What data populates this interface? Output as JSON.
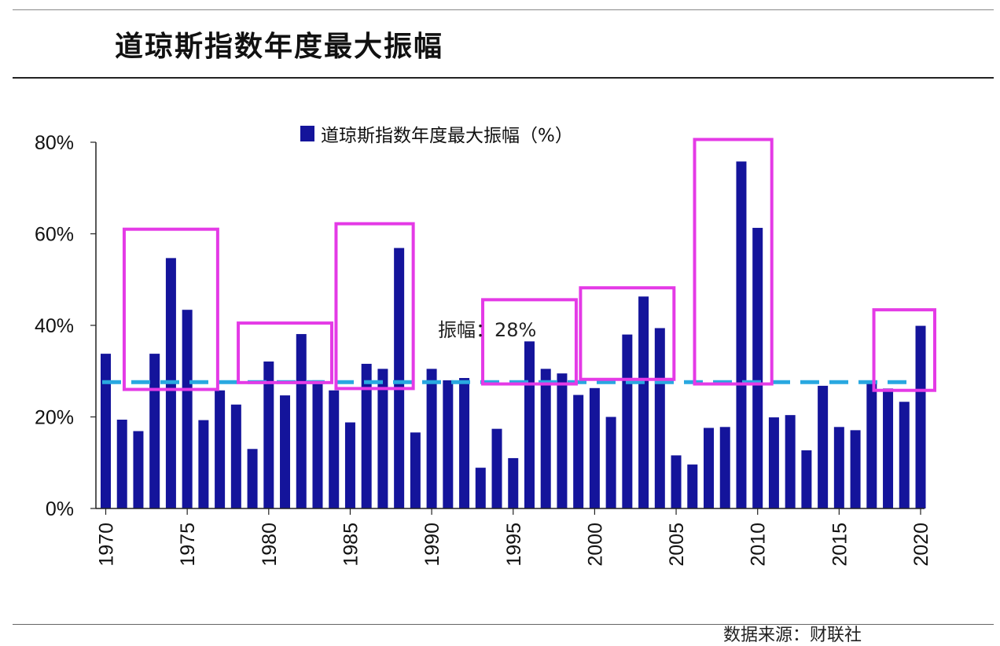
{
  "header": {
    "title": "道琼斯指数年度最大振幅"
  },
  "footer": {
    "note": "数据来源：财联社"
  },
  "chart_data": {
    "type": "bar",
    "title": "",
    "legend": {
      "label": "道琼斯指数年度最大振幅（%）",
      "placement": "top-center"
    },
    "xlabel": "",
    "ylabel": "",
    "ylim": [
      0,
      80
    ],
    "yticks": [
      "0%",
      "20%",
      "40%",
      "60%",
      "80%"
    ],
    "xtick_labels": [
      "1970",
      "1975",
      "1980",
      "1985",
      "1990",
      "1995",
      "2000",
      "2005",
      "2010",
      "2015",
      "2020"
    ],
    "grid": false,
    "bar_color": "#14149b",
    "years": [
      1970,
      1971,
      1972,
      1973,
      1974,
      1975,
      1976,
      1977,
      1978,
      1979,
      1980,
      1981,
      1982,
      1983,
      1984,
      1985,
      1986,
      1987,
      1988,
      1989,
      1990,
      1991,
      1992,
      1993,
      1994,
      1995,
      1996,
      1997,
      1998,
      1999,
      2000,
      2001,
      2002,
      2003,
      2004,
      2005,
      2006,
      2007,
      2008,
      2009,
      2010,
      2011,
      2012,
      2013,
      2014,
      2015,
      2016,
      2017,
      2018,
      2019,
      2020
    ],
    "values": [
      33.8,
      19.4,
      16.9,
      33.8,
      54.7,
      43.4,
      19.3,
      25.8,
      22.7,
      13.0,
      32.1,
      24.7,
      38.1,
      28.0,
      25.8,
      18.8,
      31.6,
      30.5,
      56.9,
      16.6,
      30.5,
      28.0,
      28.5,
      8.9,
      17.4,
      11.0,
      36.5,
      30.5,
      29.5,
      24.8,
      26.3,
      20.0,
      38.0,
      46.3,
      39.4,
      11.6,
      9.6,
      17.6,
      17.8,
      75.8,
      61.3,
      19.9,
      20.4,
      12.7,
      26.8,
      17.8,
      17.1,
      27.9,
      26.2,
      23.3,
      39.9
    ],
    "reference_line": {
      "value": 27.6,
      "label": "振幅：28%",
      "color": "#29a8e0",
      "style": "dashed"
    },
    "highlight_color": "#e43ae6",
    "highlights": [
      {
        "from": 1972,
        "to": 1976,
        "bottom": 26,
        "top": 61
      },
      {
        "from": 1979,
        "to": 1983,
        "bottom": 27.5,
        "top": 40.5
      },
      {
        "from": 1985,
        "to": 1988,
        "bottom": 26.2,
        "top": 62.2
      },
      {
        "from": 1994,
        "to": 1998,
        "bottom": 27.2,
        "top": 45.6
      },
      {
        "from": 2000,
        "to": 2004,
        "bottom": 28.2,
        "top": 48.2
      },
      {
        "from": 2007,
        "to": 2010,
        "bottom": 27.2,
        "top": 80.6
      },
      {
        "from": 2018,
        "to": 2020,
        "bottom": 25.8,
        "top": 43.4
      }
    ]
  }
}
